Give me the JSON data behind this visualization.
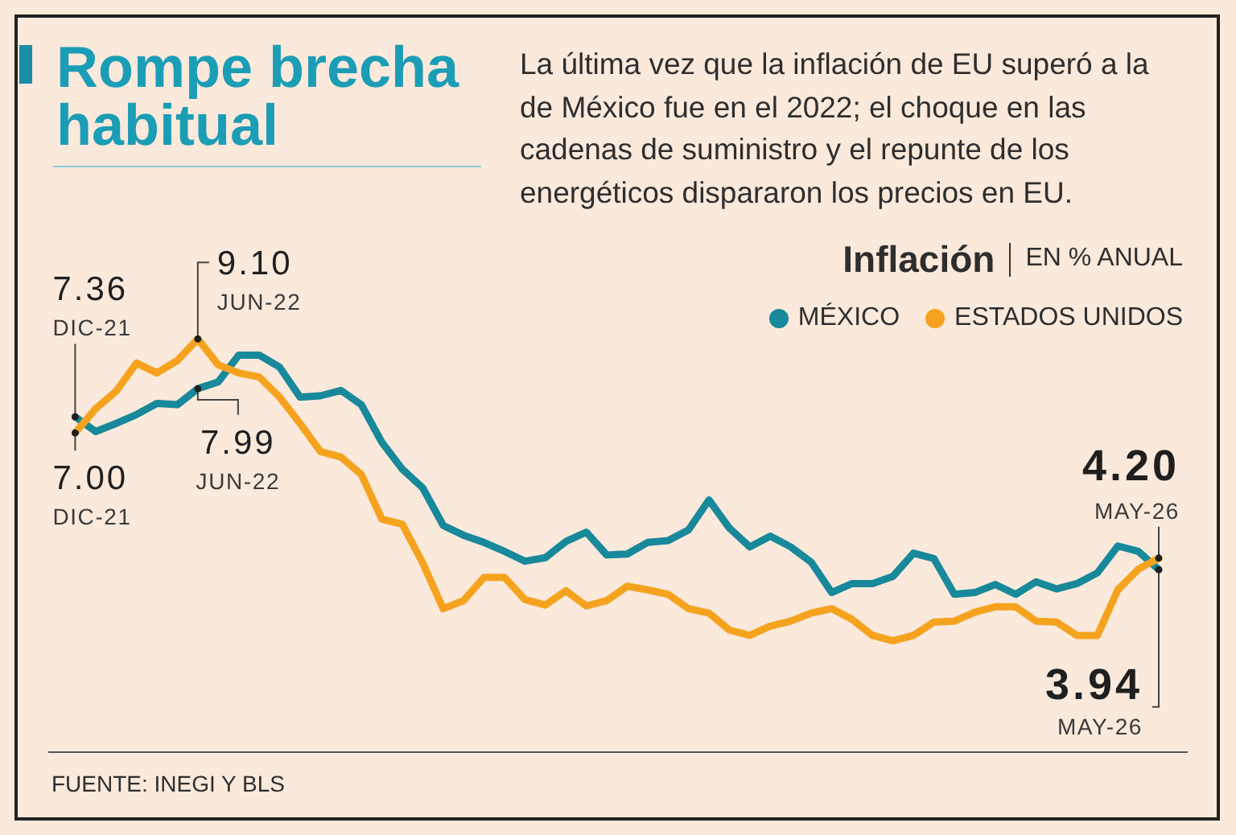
{
  "chart_data": {
    "type": "line",
    "title": "Rompe brecha habitual",
    "subtitle": "La última vez que la inflación de EU superó a la de México fue en el 2022; el choque en las cadenas de suministro y el repunte de los energéticos dispararon los precios en EU.",
    "legend_title": "Inflación",
    "ylabel": "EN % ANUAL",
    "categories": [
      null,
      null,
      null,
      null,
      null,
      null,
      null,
      null,
      null,
      null,
      null,
      null,
      null,
      null,
      null,
      null,
      null,
      null,
      null,
      null,
      null,
      null,
      null,
      null,
      null,
      null,
      null,
      null,
      null,
      null,
      null,
      null,
      null,
      null,
      null,
      null,
      null,
      null,
      null,
      null,
      null,
      null,
      null,
      null,
      null,
      null,
      null,
      null,
      null,
      null,
      null,
      null,
      null,
      null
    ],
    "series": [
      {
        "name": "MÉXICO",
        "color": "#17899b",
        "values": [
          7.36,
          7.03,
          7.21,
          7.41,
          7.66,
          7.63,
          7.99,
          8.14,
          8.74,
          8.74,
          8.47,
          7.8,
          7.83,
          7.95,
          7.63,
          6.79,
          6.19,
          5.77,
          4.93,
          4.71,
          4.55,
          4.35,
          4.13,
          4.21,
          4.57,
          4.78,
          4.27,
          4.29,
          4.55,
          4.59,
          4.83,
          5.5,
          4.87,
          4.45,
          4.69,
          4.45,
          4.11,
          3.43,
          3.63,
          3.63,
          3.79,
          4.31,
          4.19,
          3.39,
          3.43,
          3.61,
          3.39,
          3.67,
          3.51,
          3.63,
          3.87,
          4.47,
          4.35,
          3.94
        ],
        "value_labels": [
          "7.36",
          null,
          null,
          null,
          null,
          null,
          "7.99",
          null,
          null,
          null,
          null,
          null,
          null,
          null,
          null,
          null,
          null,
          null,
          null,
          null,
          null,
          null,
          null,
          null,
          null,
          null,
          null,
          null,
          null,
          null,
          null,
          null,
          null,
          null,
          null,
          null,
          null,
          null,
          null,
          null,
          null,
          null,
          null,
          null,
          null,
          null,
          null,
          null,
          null,
          null,
          null,
          null,
          null,
          "3.94"
        ]
      },
      {
        "name": "ESTADOS UNIDOS",
        "color": "#f5a31e",
        "values": [
          7.0,
          7.54,
          7.93,
          8.56,
          8.34,
          8.62,
          9.1,
          8.52,
          8.34,
          8.25,
          7.8,
          7.21,
          6.58,
          6.46,
          6.07,
          5.07,
          4.96,
          4.09,
          3.07,
          3.25,
          3.77,
          3.77,
          3.27,
          3.15,
          3.47,
          3.13,
          3.25,
          3.57,
          3.49,
          3.39,
          3.07,
          2.97,
          2.59,
          2.47,
          2.68,
          2.79,
          2.97,
          3.07,
          2.83,
          2.47,
          2.35,
          2.47,
          2.77,
          2.79,
          2.99,
          3.11,
          3.11,
          2.79,
          2.77,
          2.47,
          2.47,
          3.49,
          3.95,
          4.2
        ],
        "value_labels": [
          "7.00",
          null,
          null,
          null,
          null,
          null,
          "9.10",
          null,
          null,
          null,
          null,
          null,
          null,
          null,
          null,
          null,
          null,
          null,
          null,
          null,
          null,
          null,
          null,
          null,
          null,
          null,
          null,
          null,
          null,
          null,
          null,
          null,
          null,
          null,
          null,
          null,
          null,
          null,
          null,
          null,
          null,
          null,
          null,
          null,
          null,
          null,
          null,
          null,
          null,
          null,
          null,
          null,
          null,
          "4.20"
        ]
      }
    ],
    "annotations": [
      "DIC-21",
      "JUN-22",
      "MAY-26",
      "DIC-21",
      "JUN-22",
      "MAY-26",
      "FUENTE: INEGI Y BLS"
    ],
    "legend": "top right",
    "tick_labels": false,
    "line_style": "solid"
  }
}
